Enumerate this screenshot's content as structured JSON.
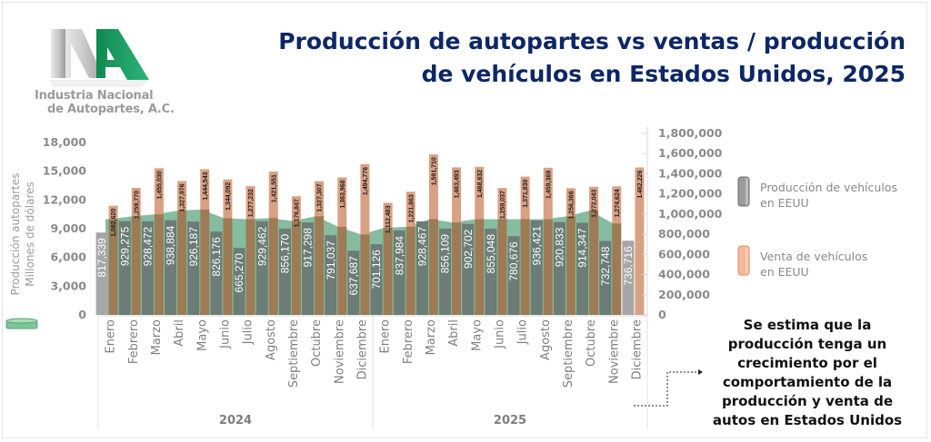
{
  "logo": {
    "icon": "ina-logo",
    "line1": "Industria Nacional",
    "line2": "de Autopartes, A.C."
  },
  "title": "Producción de autopartes vs ventas / producción de vehículos en Estados Unidos, 2025",
  "title_lines": [
    "Producción de autopartes vs ventas / producción",
    "de vehículos en Estados Unidos, 2025"
  ],
  "colors": {
    "title": "#0d2766",
    "autopartes_area": "#7fb89b",
    "produccion_bar": "#6b7d76",
    "produccion_bar_gray": "#a6a6a6",
    "venta_bar": "#d9a184",
    "venta_bar_overlap": "#9c7b55",
    "axis_text": "#8a8a8a"
  },
  "legend": {
    "autopartes_icon": "green-cylinder-icon",
    "items": [
      {
        "label_line1": "Producción de vehículos",
        "label_line2": "en EEUU",
        "icon": "gray-cylinder-icon"
      },
      {
        "label_line1": "Venta de vehículos",
        "label_line2": "en EEUU",
        "icon": "orange-cylinder-icon"
      }
    ]
  },
  "note": {
    "lines": [
      "Se estima que la",
      "producción tenga un",
      "crecimiento por el",
      "comportamiento de la",
      "producción y venta de",
      "autos en Estados Unidos"
    ]
  },
  "chart_data": {
    "type": "bar",
    "title": "Producción de autopartes vs ventas / producción de vehículos en Estados Unidos, 2025",
    "ylabel_left": [
      "Producción autopartes",
      "Millones de dólares"
    ],
    "ylabel_right": "",
    "ylim_left": [
      0,
      18000
    ],
    "yticks_left": [
      "0",
      "3,000",
      "6,000",
      "9,000",
      "12,000",
      "15,000",
      "18,000"
    ],
    "ylim_right": [
      0,
      1800000
    ],
    "yticks_right": [
      "0",
      "200,000",
      "400,000",
      "600,000",
      "800,000",
      "1,000,000",
      "1,200,000",
      "1,400,000",
      "1,600,000",
      "1,800,000"
    ],
    "groups": [
      {
        "label": "2024",
        "categories": [
          "Enero",
          "Febrero",
          "Marzo",
          "Abril",
          "Mayo",
          "Junio",
          "Julio",
          "Agosto",
          "Septiembre",
          "Octubre",
          "Noviembre",
          "Diciembre"
        ]
      },
      {
        "label": "2025",
        "categories": [
          "Enero",
          "Febrero",
          "Marzo",
          "Abril",
          "Mayo",
          "Junio",
          "Julio",
          "Agosto",
          "Septiembre",
          "Octubre",
          "Noviembre",
          "Diciembre"
        ]
      }
    ],
    "series": [
      {
        "name": "Producción autopartes (Millones de dólares)",
        "type": "area",
        "axis": "left",
        "values": [
          10000,
          10300,
          10500,
          10900,
          11000,
          10100,
          10000,
          10100,
          9800,
          10300,
          9200,
          8400,
          9100,
          9200,
          10000,
          9650,
          10000,
          10000,
          10000,
          10000,
          10300,
          10900,
          9550,
          null
        ]
      },
      {
        "name": "Producción de vehículos en EEUU",
        "type": "bar",
        "axis": "right",
        "values": [
          817339,
          929275,
          928472,
          938884,
          926187,
          826176,
          665270,
          929462,
          856170,
          917298,
          791037,
          637687,
          701126,
          837984,
          928467,
          856109,
          902702,
          855048,
          780676,
          936421,
          920833,
          914347,
          732748,
          736716
        ],
        "labels": [
          "817,339",
          "929,275",
          "928,472",
          "938,884",
          "926,187",
          "826,176",
          "665,270",
          "929,462",
          "856,170",
          "917,298",
          "791,037",
          "637,687",
          "701,126",
          "837,984",
          "928,467",
          "856,109",
          "902,702",
          "855,048",
          "780,676",
          "936,421",
          "920,833",
          "914,347",
          "732,748",
          "736,716"
        ],
        "estimated": [
          true,
          false,
          false,
          false,
          false,
          false,
          false,
          false,
          false,
          false,
          false,
          false,
          false,
          false,
          false,
          false,
          false,
          false,
          false,
          false,
          false,
          false,
          false,
          true
        ]
      },
      {
        "name": "Venta de vehículos en EEUU",
        "type": "bar",
        "axis": "right",
        "values": [
          1082620,
          1259770,
          1455030,
          1327976,
          1444543,
          1344092,
          1277232,
          1421551,
          1176847,
          1327307,
          1363968,
          1494776,
          1112483,
          1221863,
          1591710,
          1463493,
          1468632,
          1259037,
          1371830,
          1459369,
          1256366,
          1272043,
          1274624,
          1462226
        ],
        "labels": [
          "1,082,620",
          "1,259,770",
          "1,455,030",
          "1,327,976",
          "1,444,543",
          "1,344,092",
          "1,277,232",
          "1,421,551",
          "1,176,847",
          "1,327,307",
          "1,363,968",
          "1,494,776",
          "1,112,483",
          "1,221,863",
          "1,591,710",
          "1,463,493",
          "1,468,632",
          "1,259,037",
          "1,371,830",
          "1,459,369",
          "1,256,366",
          "1,272,043",
          "1,274,624",
          "1,462,226"
        ]
      }
    ],
    "legend": [
      "Producción de vehículos en EEUU",
      "Venta de vehículos en EEUU"
    ],
    "legend_position": "right",
    "grid": false
  }
}
